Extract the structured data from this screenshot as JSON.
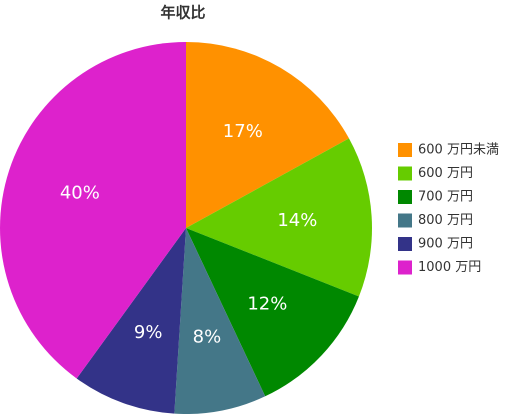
{
  "chart_data": {
    "type": "pie",
    "title": "年収比",
    "categories": [
      "600 万円未満",
      "600 万円",
      "700 万円",
      "800 万円",
      "900 万円",
      "1000 万円"
    ],
    "values": [
      17,
      14,
      12,
      8,
      9,
      40
    ],
    "value_labels": [
      "17%",
      "14%",
      "12%",
      "8%",
      "9%",
      "40%"
    ],
    "colors": [
      "#ff9100",
      "#66cc00",
      "#008800",
      "#447788",
      "#333388",
      "#dd22cc"
    ],
    "legend": "right"
  }
}
